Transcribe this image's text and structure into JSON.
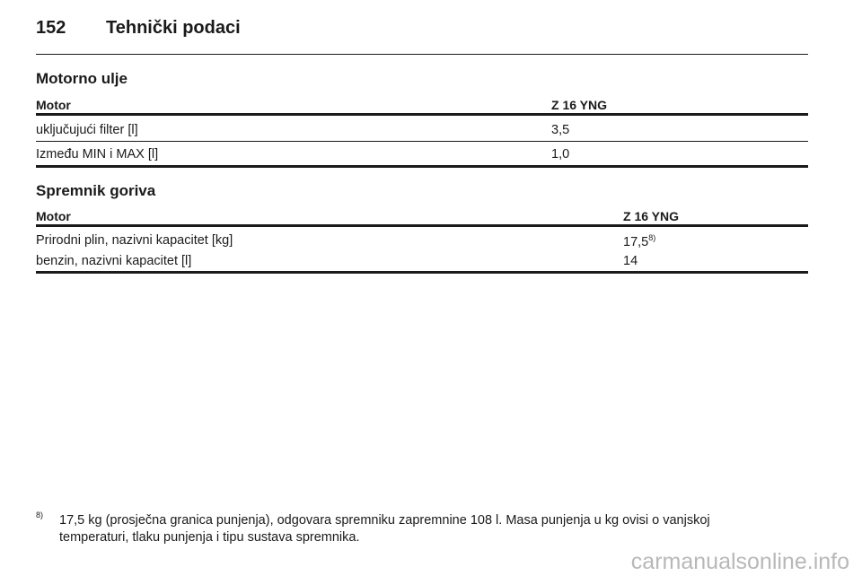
{
  "header": {
    "page_number": "152",
    "title": "Tehnički podaci"
  },
  "sections": [
    {
      "title": "Motorno ulje",
      "table": {
        "header": [
          "Motor",
          "Z 16 YNG"
        ],
        "rows": [
          [
            "uključujući filter [l]",
            "3,5"
          ],
          [
            "Između MIN i MAX [l]",
            "1,0"
          ]
        ]
      }
    },
    {
      "title": "Spremnik goriva",
      "table": {
        "header": [
          "Motor",
          "Z 16 YNG"
        ],
        "rows": [
          [
            "Prirodni plin, nazivni kapacitet [kg]",
            "17,5"
          ],
          [
            "benzin, nazivni kapacitet [l]",
            "14"
          ]
        ],
        "footnote_ref": "8)"
      }
    }
  ],
  "footnote": {
    "marker": "8)",
    "lines": [
      "17,5 kg (prosječna granica punjenja), odgovara spremniku zapremnine 108 l. Masa punjenja u kg ovisi o vanjskoj",
      "temperaturi, tlaku punjenja i tipu sustava spremnika."
    ]
  },
  "watermark": "carmanualsonline.info"
}
